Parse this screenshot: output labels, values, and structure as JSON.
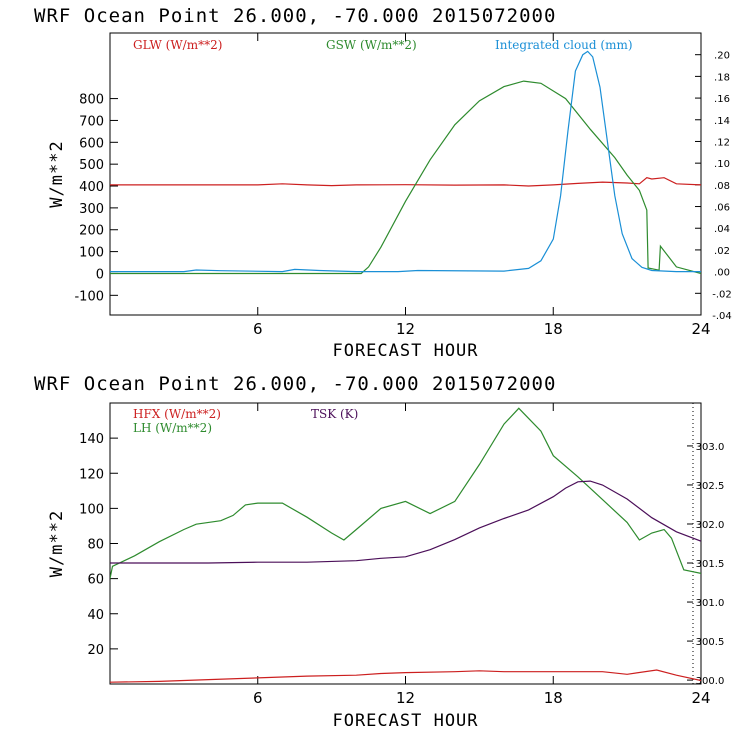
{
  "colors": {
    "red": "#cc1f1f",
    "green": "#2e8b2e",
    "blue": "#1a8fd6",
    "purple": "#4b0f59",
    "axis": "#000000"
  },
  "chart_data": [
    {
      "type": "line",
      "title": "WRF   Ocean Point   26.000, -70.000  2015072000",
      "xlabel": "FORECAST HOUR",
      "ylabel": "W/m**2",
      "xlim": [
        0,
        24
      ],
      "ylim": [
        -190,
        1100
      ],
      "y2lim": [
        -0.04,
        0.22
      ],
      "xticks": [
        "6",
        "12",
        "18",
        "24"
      ],
      "yticks": [
        "-100",
        "0",
        "100",
        "200",
        "300",
        "400",
        "500",
        "600",
        "700",
        "800"
      ],
      "y2ticks": [
        "-.04",
        "-.02",
        ".00",
        ".02",
        ".04",
        ".06",
        ".08",
        ".10",
        ".12",
        ".14",
        ".16",
        ".18",
        ".20"
      ],
      "legend": {
        "glw": "GLW (W/m**2)",
        "gsw": "GSW (W/m**2)",
        "cloud": "Integrated cloud (mm)"
      },
      "series": [
        {
          "name": "GLW (W/m**2)",
          "axis": "left",
          "color": "red",
          "x": [
            0,
            2,
            4,
            6,
            7,
            8,
            9,
            10,
            12,
            14,
            16,
            17,
            18,
            19,
            20,
            21,
            21.5,
            21.8,
            22.0,
            22.5,
            23,
            24
          ],
          "y": [
            405,
            405,
            405,
            405,
            410,
            405,
            402,
            405,
            406,
            404,
            405,
            400,
            405,
            412,
            418,
            414,
            410,
            438,
            432,
            438,
            410,
            405
          ]
        },
        {
          "name": "GSW (W/m**2)",
          "axis": "left",
          "color": "green",
          "x": [
            0,
            10.2,
            10.5,
            11,
            12,
            13,
            14,
            15,
            16,
            16.8,
            17.5,
            18.5,
            19.5,
            20.5,
            21.0,
            21.5,
            21.8,
            21.85,
            22.3,
            22.35,
            23,
            24
          ],
          "y": [
            0,
            0,
            30,
            120,
            330,
            520,
            680,
            790,
            855,
            880,
            870,
            800,
            660,
            530,
            450,
            380,
            290,
            25,
            15,
            125,
            30,
            0
          ]
        },
        {
          "name": "Integrated cloud (mm)",
          "axis": "right",
          "color": "blue",
          "x": [
            0,
            3,
            3.5,
            4.5,
            7,
            7.5,
            8.5,
            10,
            11.7,
            12.5,
            16,
            17,
            17.5,
            18,
            18.3,
            18.6,
            18.9,
            19.2,
            19.4,
            19.6,
            19.9,
            20.2,
            20.5,
            20.8,
            21.2,
            21.6,
            22,
            23,
            24
          ],
          "y": [
            0,
            0,
            0.0015,
            0.0008,
            0,
            0.002,
            0.001,
            0,
            0,
            0.001,
            0.0005,
            0.003,
            0.01,
            0.03,
            0.07,
            0.13,
            0.185,
            0.2,
            0.203,
            0.198,
            0.17,
            0.12,
            0.07,
            0.035,
            0.012,
            0.004,
            0.001,
            0,
            0
          ]
        }
      ]
    },
    {
      "type": "line",
      "title": "WRF   Ocean Point   26.000, -70.000  2015072000",
      "xlabel": "FORECAST HOUR",
      "ylabel": "W/m**2",
      "xlim": [
        0,
        24
      ],
      "ylim": [
        0,
        160
      ],
      "y2lim": [
        299.95,
        303.55
      ],
      "xticks": [
        "6",
        "12",
        "18",
        "24"
      ],
      "yticks": [
        "20",
        "40",
        "60",
        "80",
        "100",
        "120",
        "140"
      ],
      "y2ticks": [
        "300.0",
        "300.5",
        "301.0",
        "301.5",
        "302.0",
        "302.5",
        "303.0"
      ],
      "legend": {
        "hfx": "HFX (W/m**2)",
        "lh": "LH  (W/m**2)",
        "tsk": "TSK (K)"
      },
      "series": [
        {
          "name": "HFX (W/m**2)",
          "axis": "left",
          "color": "red",
          "x": [
            0,
            2,
            4,
            6,
            8,
            10,
            11,
            12,
            14,
            15,
            16,
            18,
            20,
            21,
            22.2,
            23,
            24
          ],
          "y": [
            1,
            1.5,
            2.5,
            3.5,
            4.5,
            5,
            6,
            6.5,
            7,
            7.5,
            7,
            7,
            7,
            5.5,
            8,
            5,
            2
          ]
        },
        {
          "name": "LH  (W/m**2)",
          "axis": "left",
          "color": "green",
          "x": [
            0,
            0.1,
            1,
            2,
            3,
            3.5,
            4.5,
            5,
            5.5,
            6,
            7,
            8,
            9,
            9.5,
            10,
            11,
            12,
            13,
            14,
            15,
            16,
            16.6,
            17.5,
            18,
            19,
            20,
            21,
            21.5,
            22,
            22.5,
            22.8,
            23.3,
            24
          ],
          "y": [
            60,
            67,
            73,
            81,
            88,
            91,
            93,
            96,
            102,
            103,
            103,
            95,
            86,
            82,
            88,
            100,
            104,
            97,
            104,
            125,
            148,
            157,
            144,
            130,
            118,
            105,
            92,
            82,
            86,
            88,
            83,
            65,
            63
          ]
        },
        {
          "name": "TSK (K)",
          "axis": "right",
          "color": "purple",
          "x": [
            0,
            2,
            4,
            6,
            8,
            10,
            11,
            12,
            13,
            14,
            15,
            16,
            17,
            18,
            18.5,
            19,
            19.5,
            20,
            21,
            22,
            23,
            24
          ],
          "y": [
            301.5,
            301.5,
            301.5,
            301.51,
            301.51,
            301.53,
            301.56,
            301.58,
            301.67,
            301.8,
            301.95,
            302.07,
            302.18,
            302.35,
            302.46,
            302.54,
            302.55,
            302.5,
            302.32,
            302.08,
            301.9,
            301.78
          ]
        }
      ]
    }
  ]
}
